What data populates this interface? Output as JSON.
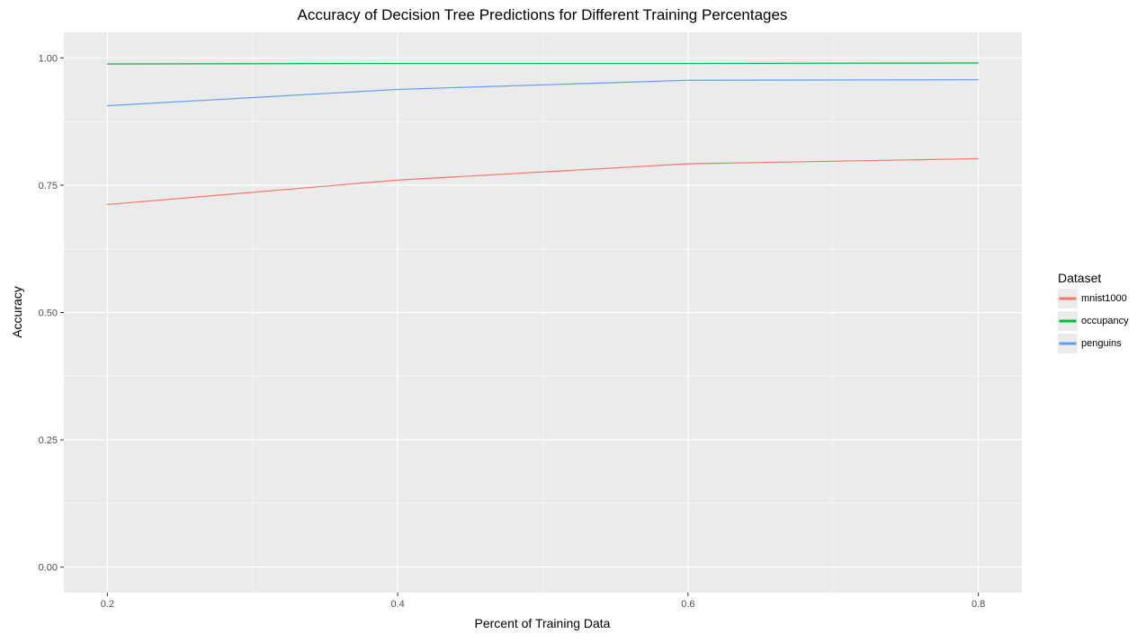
{
  "chart_data": {
    "type": "line",
    "title": "Accuracy of Decision Tree Predictions for Different Training Percentages",
    "xlabel": "Percent of Training Data",
    "ylabel": "Accuracy",
    "x": [
      0.2,
      0.4,
      0.6,
      0.8
    ],
    "x_ticks": [
      "0.2",
      "0.4",
      "0.6",
      "0.8"
    ],
    "y_ticks": [
      "0.00",
      "0.25",
      "0.50",
      "0.75",
      "1.00"
    ],
    "xlim": [
      0.17,
      0.83
    ],
    "ylim": [
      -0.05,
      1.05
    ],
    "grid": true,
    "legend": {
      "title": "Dataset",
      "position": "right"
    },
    "series": [
      {
        "name": "mnist1000",
        "color": "#F8766D",
        "values": [
          0.712,
          0.76,
          0.792,
          0.802
        ]
      },
      {
        "name": "occupancy",
        "color": "#00BA38",
        "values": [
          0.988,
          0.989,
          0.989,
          0.99
        ]
      },
      {
        "name": "penguins",
        "color": "#619CFF",
        "values": [
          0.906,
          0.938,
          0.956,
          0.957
        ]
      }
    ]
  },
  "colors": {
    "panel_background": "#EBEBEB",
    "grid_major": "#FFFFFF",
    "grid_minor": "#F5F5F5",
    "text_main": "#000000",
    "text_axis": "#4D4D4D",
    "tick": "#333333"
  }
}
